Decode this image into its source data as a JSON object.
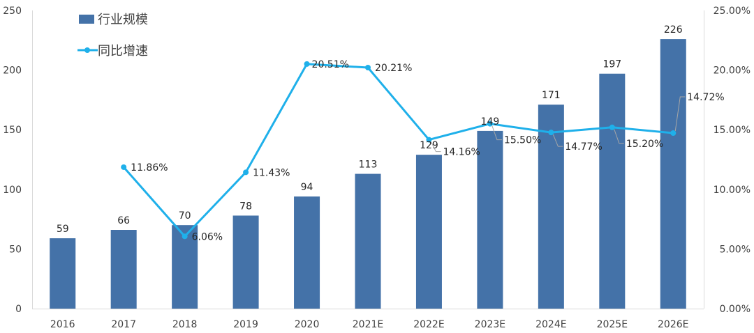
{
  "chart_data": {
    "type": "bar+line",
    "categories": [
      "2016",
      "2017",
      "2018",
      "2019",
      "2020",
      "2021E",
      "2022E",
      "2023E",
      "2024E",
      "2025E",
      "2026E"
    ],
    "series": [
      {
        "name": "行业规模",
        "type": "bar",
        "axis": "left",
        "color": "#4472a8",
        "values": [
          59,
          66,
          70,
          78,
          94,
          113,
          129,
          149,
          171,
          197,
          226
        ],
        "labels": [
          "59",
          "66",
          "70",
          "78",
          "94",
          "113",
          "129",
          "149",
          "171",
          "197",
          "226"
        ]
      },
      {
        "name": "同比增速",
        "type": "line",
        "axis": "right",
        "color": "#1fb0ea",
        "values": [
          null,
          11.86,
          6.06,
          11.43,
          20.51,
          20.21,
          14.16,
          15.5,
          14.77,
          15.2,
          14.72
        ],
        "labels": [
          "",
          "11.86%",
          "6.06%",
          "11.43%",
          "20.51%",
          "20.21%",
          "14.16%",
          "15.50%",
          "14.77%",
          "15.20%",
          "14.72%"
        ]
      }
    ],
    "y_left": {
      "min": 0,
      "max": 250,
      "ticks": [
        "0",
        "50",
        "100",
        "150",
        "200",
        "250"
      ]
    },
    "y_right": {
      "min": 0,
      "max": 25,
      "ticks": [
        "0.00%",
        "5.00%",
        "10.00%",
        "15.00%",
        "20.00%",
        "25.00%"
      ]
    },
    "legend_position": "top-left",
    "grid": false
  }
}
